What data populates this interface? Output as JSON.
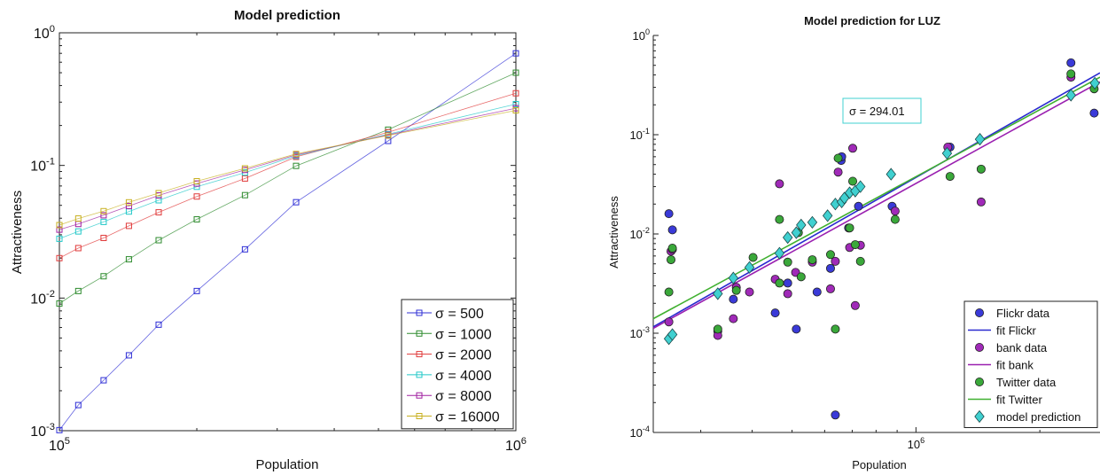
{
  "chart_data": [
    {
      "type": "line",
      "title": "Model prediction",
      "xlabel": "Population",
      "ylabel": "Attractiveness",
      "xscale": "log",
      "yscale": "log",
      "xlim": [
        100000,
        1000000
      ],
      "ylim": [
        0.001,
        1
      ],
      "x_ticks": [
        {
          "value": 100000,
          "base": "10",
          "exp": "5"
        },
        {
          "value": 1000000,
          "base": "10",
          "exp": "6"
        }
      ],
      "y_ticks": [
        {
          "value": 0.001,
          "base": "10",
          "exp": "-3"
        },
        {
          "value": 0.01,
          "base": "10",
          "exp": "-2"
        },
        {
          "value": 0.1,
          "base": "10",
          "exp": "-1"
        },
        {
          "value": 1,
          "base": "10",
          "exp": "0"
        }
      ],
      "grid": false,
      "legend_position": "bottom-right",
      "marker": "square",
      "x": [
        100000,
        110000,
        125000,
        142000,
        165000,
        200000,
        255000,
        330000,
        525000,
        1000000
      ],
      "series": [
        {
          "name": "σ = 500",
          "color": "#2f2fd6",
          "values": [
            0.00101,
            0.00156,
            0.0024,
            0.0037,
            0.0063,
            0.0113,
            0.0233,
            0.0528,
            0.153,
            0.7
          ]
        },
        {
          "name": "σ = 1000",
          "color": "#2e8b2e",
          "values": [
            0.0091,
            0.0113,
            0.0146,
            0.0196,
            0.0273,
            0.0392,
            0.0597,
            0.0992,
            0.186,
            0.5
          ]
        },
        {
          "name": "σ = 2000",
          "color": "#e03a3a",
          "values": [
            0.02,
            0.0238,
            0.0284,
            0.035,
            0.0443,
            0.0583,
            0.0797,
            0.116,
            0.178,
            0.35
          ]
        },
        {
          "name": "σ = 4000",
          "color": "#22c8c8",
          "values": [
            0.028,
            0.0318,
            0.0375,
            0.0449,
            0.0546,
            0.069,
            0.0883,
            0.118,
            0.172,
            0.29
          ]
        },
        {
          "name": "σ = 8000",
          "color": "#a020a0",
          "values": [
            0.0328,
            0.0362,
            0.0421,
            0.0494,
            0.0594,
            0.073,
            0.0925,
            0.12,
            0.17,
            0.27
          ]
        },
        {
          "name": "σ = 16000",
          "color": "#c8b020",
          "values": [
            0.0355,
            0.0398,
            0.0452,
            0.0527,
            0.0618,
            0.076,
            0.095,
            0.122,
            0.168,
            0.26
          ]
        }
      ]
    },
    {
      "type": "scatter",
      "title": "Model prediction for LUZ",
      "xlabel": "Population",
      "ylabel": "Attractiveness",
      "xscale": "log",
      "yscale": "log",
      "xlim": [
        230000,
        2800000
      ],
      "ylim": [
        0.0001,
        1
      ],
      "x_ticks": [
        {
          "value": 1000000,
          "base": "10",
          "exp": "6"
        }
      ],
      "y_ticks": [
        {
          "value": 0.0001,
          "base": "10",
          "exp": "-4"
        },
        {
          "value": 0.001,
          "base": "10",
          "exp": "-3"
        },
        {
          "value": 0.01,
          "base": "10",
          "exp": "-2"
        },
        {
          "value": 0.1,
          "base": "10",
          "exp": "-1"
        },
        {
          "value": 1,
          "base": "10",
          "exp": "0"
        }
      ],
      "grid": false,
      "legend_position": "bottom-right",
      "annotation": "σ = 294.01",
      "legend": [
        {
          "label": "Flickr data",
          "kind": "marker",
          "color": "#3a3ad8"
        },
        {
          "label": "fit Flickr",
          "kind": "line",
          "color": "#2a2ad0"
        },
        {
          "label": "bank data",
          "kind": "marker",
          "color": "#a02ab8"
        },
        {
          "label": "fit bank",
          "kind": "line",
          "color": "#9a20b0"
        },
        {
          "label": "Twitter data",
          "kind": "marker",
          "color": "#3aa83a"
        },
        {
          "label": "fit Twitter",
          "kind": "line",
          "color": "#40b030"
        },
        {
          "label": "model prediction",
          "kind": "diamond",
          "color": "#40d0d0"
        }
      ],
      "fits": [
        {
          "name": "fit Flickr",
          "color": "#2a2ad0",
          "x": [
            230000,
            2800000
          ],
          "y": [
            0.00116,
            0.42
          ]
        },
        {
          "name": "fit bank",
          "color": "#9a20b0",
          "x": [
            230000,
            2800000
          ],
          "y": [
            0.00112,
            0.34
          ]
        },
        {
          "name": "fit Twitter",
          "color": "#40b030",
          "x": [
            230000,
            2800000
          ],
          "y": [
            0.0014,
            0.38
          ]
        }
      ],
      "series": [
        {
          "name": "Flickr data",
          "color": "#3a3ad8",
          "marker": "circle",
          "x": [
            251000,
            256000,
            330000,
            360000,
            455000,
            488000,
            512000,
            575000,
            620000,
            637000,
            658000,
            660000,
            686000,
            725000,
            875000,
            1210000,
            2380000,
            2710000
          ],
          "y": [
            0.016,
            0.011,
            0.00105,
            0.0022,
            0.0016,
            0.0032,
            0.0011,
            0.0026,
            0.0045,
            0.00015,
            0.055,
            0.06,
            0.0115,
            0.019,
            0.019,
            0.075,
            0.53,
            0.165
          ]
        },
        {
          "name": "bank data",
          "color": "#a02ab8",
          "marker": "circle",
          "x": [
            251000,
            254000,
            256000,
            330000,
            360000,
            366000,
            394000,
            455000,
            466000,
            488000,
            510000,
            560000,
            620000,
            637000,
            647000,
            690000,
            702000,
            712000,
            733000,
            890000,
            1195000,
            1440000,
            2380000
          ],
          "y": [
            0.0013,
            0.0067,
            0.007,
            0.00095,
            0.0014,
            0.0029,
            0.0026,
            0.0035,
            0.032,
            0.0025,
            0.0041,
            0.0052,
            0.0028,
            0.0053,
            0.042,
            0.0073,
            0.073,
            0.0019,
            0.0077,
            0.017,
            0.075,
            0.021,
            0.38
          ]
        },
        {
          "name": "Twitter data",
          "color": "#3aa83a",
          "marker": "circle",
          "x": [
            251000,
            254000,
            256000,
            330000,
            366000,
            402000,
            466000,
            466000,
            488000,
            518000,
            526000,
            560000,
            620000,
            637000,
            647000,
            690000,
            702000,
            712000,
            733000,
            890000,
            1210000,
            1440000,
            2380000,
            2710000
          ],
          "y": [
            0.0026,
            0.0055,
            0.0072,
            0.0011,
            0.0027,
            0.0058,
            0.0032,
            0.014,
            0.0052,
            0.0103,
            0.0037,
            0.0055,
            0.0062,
            0.0011,
            0.058,
            0.0115,
            0.034,
            0.0078,
            0.0053,
            0.014,
            0.038,
            0.045,
            0.41,
            0.29
          ]
        },
        {
          "name": "model prediction",
          "color": "#40d0d0",
          "marker": "diamond",
          "x": [
            251000,
            256000,
            330000,
            360000,
            394000,
            466000,
            488000,
            512000,
            526000,
            560000,
            610000,
            637000,
            660000,
            670000,
            690000,
            712000,
            733000,
            870000,
            1190000,
            1430000,
            2380000,
            2720000
          ],
          "y": [
            0.00088,
            0.00097,
            0.0025,
            0.0036,
            0.0046,
            0.0064,
            0.0092,
            0.0103,
            0.0123,
            0.0131,
            0.0153,
            0.02,
            0.021,
            0.023,
            0.026,
            0.027,
            0.03,
            0.04,
            0.065,
            0.09,
            0.25,
            0.33
          ]
        }
      ]
    }
  ]
}
